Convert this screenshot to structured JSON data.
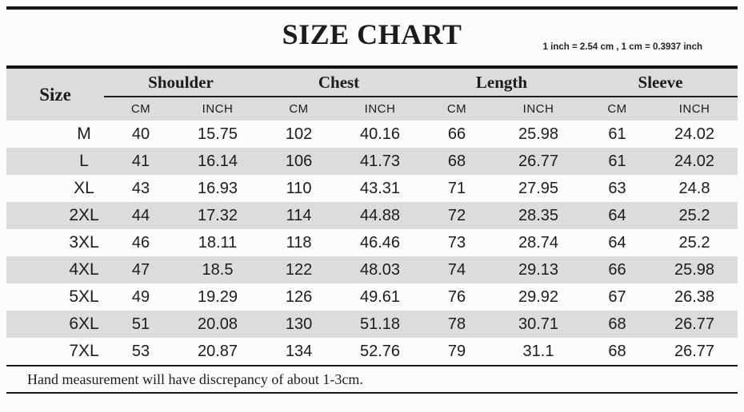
{
  "header": {
    "title": "SIZE CHART",
    "conversion_note": "1 inch = 2.54 cm , 1 cm = 0.3937 inch"
  },
  "chart_data": {
    "type": "table",
    "title": "SIZE CHART",
    "size_column_header": "Size",
    "groups": [
      {
        "label": "Shoulder",
        "sub": [
          "CM",
          "INCH"
        ]
      },
      {
        "label": "Chest",
        "sub": [
          "CM",
          "INCH"
        ]
      },
      {
        "label": "Length",
        "sub": [
          "CM",
          "INCH"
        ]
      },
      {
        "label": "Sleeve",
        "sub": [
          "CM",
          "INCH"
        ]
      }
    ],
    "rows": [
      {
        "size": "M",
        "values": [
          "40",
          "15.75",
          "102",
          "40.16",
          "66",
          "25.98",
          "61",
          "24.02"
        ]
      },
      {
        "size": "L",
        "values": [
          "41",
          "16.14",
          "106",
          "41.73",
          "68",
          "26.77",
          "61",
          "24.02"
        ]
      },
      {
        "size": "XL",
        "values": [
          "43",
          "16.93",
          "110",
          "43.31",
          "71",
          "27.95",
          "63",
          "24.8"
        ]
      },
      {
        "size": "2XL",
        "values": [
          "44",
          "17.32",
          "114",
          "44.88",
          "72",
          "28.35",
          "64",
          "25.2"
        ]
      },
      {
        "size": "3XL",
        "values": [
          "46",
          "18.11",
          "118",
          "46.46",
          "73",
          "28.74",
          "64",
          "25.2"
        ]
      },
      {
        "size": "4XL",
        "values": [
          "47",
          "18.5",
          "122",
          "48.03",
          "74",
          "29.13",
          "66",
          "25.98"
        ]
      },
      {
        "size": "5XL",
        "values": [
          "49",
          "19.29",
          "126",
          "49.61",
          "76",
          "29.92",
          "67",
          "26.38"
        ]
      },
      {
        "size": "6XL",
        "values": [
          "51",
          "20.08",
          "130",
          "51.18",
          "78",
          "30.71",
          "68",
          "26.77"
        ]
      },
      {
        "size": "7XL",
        "values": [
          "53",
          "20.87",
          "134",
          "52.76",
          "79",
          "31.1",
          "68",
          "26.77"
        ]
      }
    ]
  },
  "footer": {
    "note": "Hand measurement will have discrepancy of about 1-3cm."
  },
  "colors": {
    "stripe": "#dcdcdc",
    "rule": "#161616",
    "page_background": "#fcfcfc",
    "text": "#1c1c1c"
  }
}
